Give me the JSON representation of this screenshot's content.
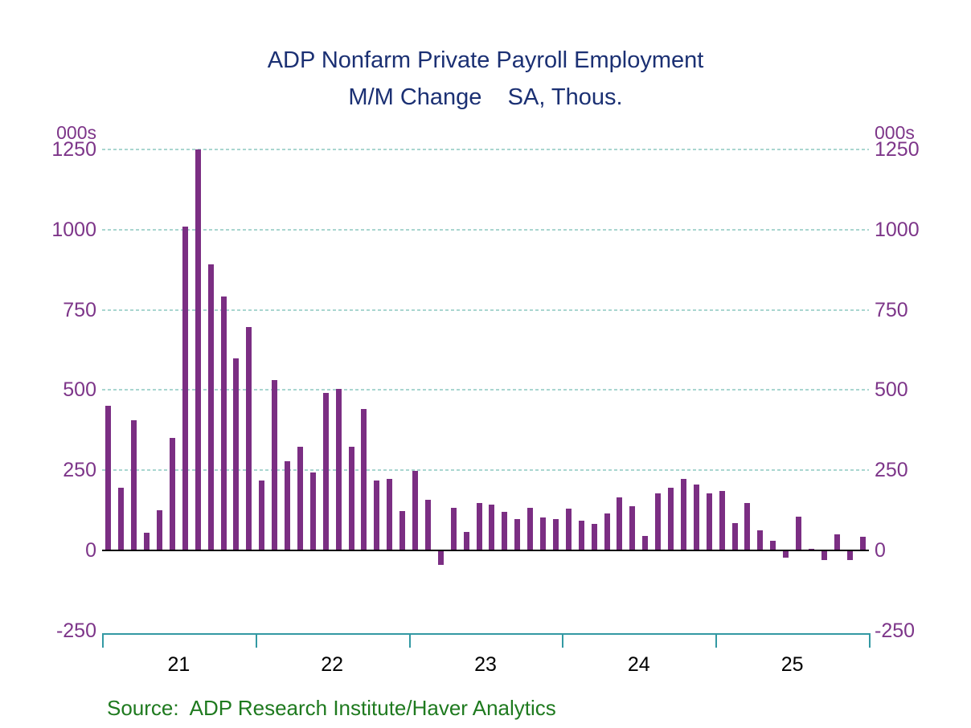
{
  "chart_data": {
    "type": "bar",
    "title": "ADP Nonfarm Private Payroll Employment",
    "subtitle": "M/M Change    SA, Thous.",
    "unit_label_left": "000s",
    "unit_label_right": "000s",
    "source": "Source:  ADP Research Institute/Haver Analytics",
    "ylim": [
      -250,
      1250
    ],
    "y_ticks": [
      1250,
      1000,
      750,
      500,
      250,
      0,
      -250
    ],
    "gridline_values": [
      1250,
      1000,
      750,
      500,
      250
    ],
    "grid": "horizontal dashed, no vertical grid, zero line solid black, bottom frame teal with year ticks",
    "legend": "none",
    "x_year_labels": [
      "21",
      "22",
      "23",
      "24",
      "25"
    ],
    "categories": [
      "Jan-21",
      "Feb-21",
      "Mar-21",
      "Apr-21",
      "May-21",
      "Jun-21",
      "Jul-21",
      "Aug-21",
      "Sep-21",
      "Oct-21",
      "Nov-21",
      "Dec-21",
      "Jan-22",
      "Feb-22",
      "Mar-22",
      "Apr-22",
      "May-22",
      "Jun-22",
      "Jul-22",
      "Aug-22",
      "Sep-22",
      "Oct-22",
      "Nov-22",
      "Dec-22",
      "Jan-23",
      "Feb-23",
      "Mar-23",
      "Apr-23",
      "May-23",
      "Jun-23",
      "Jul-23",
      "Aug-23",
      "Sep-23",
      "Oct-23",
      "Nov-23",
      "Dec-23",
      "Jan-24",
      "Feb-24",
      "Mar-24",
      "Apr-24",
      "May-24",
      "Jun-24",
      "Jul-24",
      "Aug-24",
      "Sep-24",
      "Oct-24",
      "Nov-24",
      "Dec-24",
      "Jan-25",
      "Feb-25",
      "Mar-25",
      "Apr-25",
      "May-25",
      "Jun-25",
      "Jul-25",
      "Aug-25",
      "Sep-25",
      "Oct-25",
      "Nov-25",
      "Dec-25"
    ],
    "values": [
      450,
      195,
      405,
      55,
      125,
      350,
      1010,
      1250,
      892,
      792,
      598,
      697,
      217,
      531,
      277,
      322,
      243,
      492,
      503,
      322,
      442,
      217,
      223,
      122,
      247,
      158,
      -45,
      132,
      57,
      148,
      142,
      121,
      98,
      133,
      103,
      98,
      130,
      93,
      83,
      115,
      165,
      138,
      45,
      179,
      195,
      222,
      205,
      177,
      186,
      84,
      147,
      62,
      29,
      -23,
      106,
      5,
      -29,
      50,
      -29,
      43
    ],
    "colors": {
      "bar": "#7b2e83",
      "title": "#1b3073",
      "y_axis_labels": "#7d3589",
      "year_labels": "#000000",
      "gridline": "#a9d6d0",
      "zero_line": "#000000",
      "bottom_axis": "#3399a3",
      "source_text": "#1f7a1f",
      "background": "#ffffff"
    }
  }
}
